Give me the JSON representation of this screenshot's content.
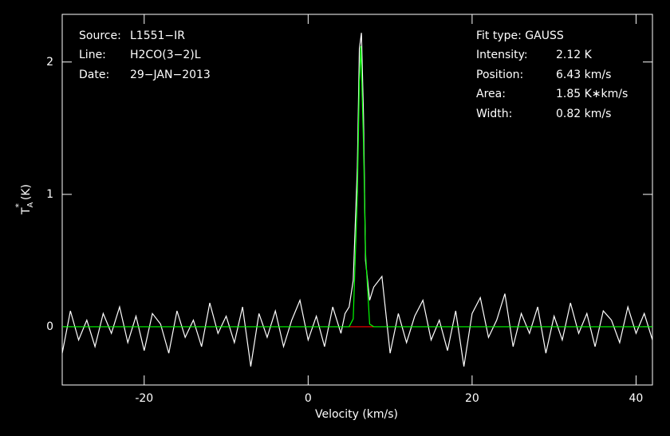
{
  "chart_data": {
    "type": "line",
    "xlabel": "Velocity (km/s)",
    "ylabel": {
      "main": "T",
      "sub": "A",
      "sup": "*",
      "unit": "(K)"
    },
    "xlim": [
      -30,
      42
    ],
    "ylim": [
      -0.44,
      2.36
    ],
    "xticks": [
      -20,
      0,
      20,
      40
    ],
    "yticks": [
      0,
      1,
      2
    ],
    "info_left": [
      {
        "label": "Source:",
        "value": "L1551−IR"
      },
      {
        "label": "Line:",
        "value": "H2CO(3−2)L"
      },
      {
        "label": "Date:",
        "value": "29−JAN−2013"
      }
    ],
    "fit_type": "Fit type: GAUSS",
    "fit_info": [
      {
        "label": "Intensity:",
        "value": "2.12 K"
      },
      {
        "label": "Position:",
        "value": "6.43 km/s"
      },
      {
        "label": "Area:",
        "value": "1.85 K∗km/s"
      },
      {
        "label": "Width:",
        "value": "0.82 km/s"
      }
    ],
    "series": [
      {
        "color": "#ffffff",
        "x": [
          -30,
          -29,
          -28,
          -27,
          -26,
          -25,
          -24,
          -23,
          -22,
          -21,
          -20,
          -19,
          -18,
          -17,
          -16,
          -15,
          -14,
          -13,
          -12,
          -11,
          -10,
          -9,
          -8,
          -7,
          -6,
          -5,
          -4,
          -3,
          -2,
          -1,
          0,
          1,
          2,
          3,
          4,
          4.5,
          5,
          5.5,
          6,
          6.25,
          6.5,
          6.75,
          7,
          7.5,
          8,
          9,
          10,
          11,
          12,
          13,
          14,
          15,
          16,
          17,
          18,
          19,
          20,
          21,
          22,
          23,
          24,
          25,
          26,
          27,
          28,
          29,
          30,
          31,
          32,
          33,
          34,
          35,
          36,
          37,
          38,
          39,
          40,
          41,
          42
        ],
        "values": [
          -0.2,
          0.12,
          -0.1,
          0.05,
          -0.15,
          0.1,
          -0.05,
          0.15,
          -0.12,
          0.08,
          -0.18,
          0.1,
          0.02,
          -0.2,
          0.12,
          -0.08,
          0.05,
          -0.15,
          0.18,
          -0.05,
          0.08,
          -0.12,
          0.15,
          -0.3,
          0.1,
          -0.08,
          0.12,
          -0.15,
          0.05,
          0.2,
          -0.1,
          0.08,
          -0.15,
          0.15,
          -0.05,
          0.1,
          0.15,
          0.35,
          1.2,
          2.1,
          2.22,
          1.6,
          0.5,
          0.2,
          0.3,
          0.38,
          -0.2,
          0.1,
          -0.12,
          0.08,
          0.2,
          -0.1,
          0.05,
          -0.18,
          0.12,
          -0.3,
          0.1,
          0.22,
          -0.08,
          0.05,
          0.25,
          -0.15,
          0.1,
          -0.05,
          0.15,
          -0.2,
          0.08,
          -0.1,
          0.18,
          -0.05,
          0.1,
          -0.15,
          0.12,
          0.05,
          -0.12,
          0.15,
          -0.05,
          0.1,
          -0.1
        ]
      },
      {
        "color": "#ff0000",
        "x": [
          5,
          8
        ],
        "values": [
          0,
          0
        ]
      },
      {
        "color": "#00ff00",
        "x": [
          -30,
          4.5,
          5,
          5.5,
          6,
          6.25,
          6.43,
          6.75,
          7,
          7.5,
          8,
          42
        ],
        "values": [
          0,
          0,
          0,
          0.06,
          0.99,
          1.85,
          2.12,
          1.39,
          0.56,
          0.02,
          0,
          0
        ]
      }
    ]
  }
}
